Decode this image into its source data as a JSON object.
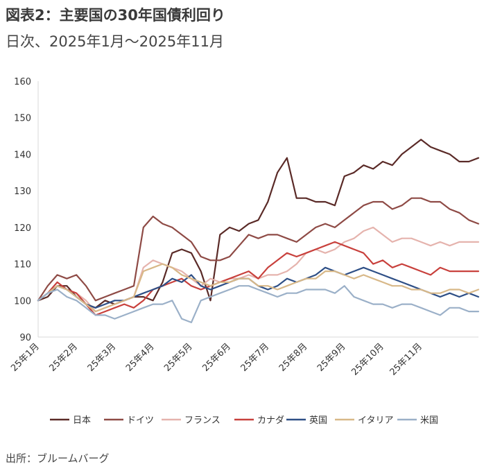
{
  "header": {
    "title": "図表2：主要国の30年国債利回り",
    "subtitle": "日次、2025年1月～2025年11月"
  },
  "footer": {
    "source": "出所：ブルームバーグ"
  },
  "colors": {
    "日本": "#5a2a27",
    "ドイツ": "#8e4a45",
    "フランス": "#e5b3ad",
    "カナダ": "#c8403c",
    "英国": "#2e4f86",
    "イタリア": "#d8b888",
    "米国": "#9bb0c8"
  },
  "chart_data": {
    "type": "line",
    "title": "主要国の30年国債利回り",
    "xlabel": "",
    "ylabel": "",
    "ylim": [
      90,
      160
    ],
    "yticks": [
      90,
      100,
      110,
      120,
      130,
      140,
      150,
      160
    ],
    "xlim": [
      0,
      46
    ],
    "x_tick_labels": [
      "25年1月",
      "25年2月",
      "25年3月",
      "25年4月",
      "25年5月",
      "25年6月",
      "25年7月",
      "25年8月",
      "25年9月",
      "25年10月",
      "25年11月"
    ],
    "x_tick_positions": [
      0,
      4,
      8,
      12,
      16,
      20,
      24,
      28,
      32,
      36,
      40
    ],
    "grid": false,
    "legend_position": "bottom",
    "series": [
      {
        "name": "日本",
        "values": [
          100,
          101,
          104,
          104,
          101,
          99,
          98,
          100,
          99,
          100,
          101,
          101,
          100,
          105,
          113,
          114,
          113,
          108,
          100,
          118,
          120,
          119,
          121,
          122,
          127,
          135,
          139,
          128,
          128,
          127,
          127,
          126,
          134,
          135,
          137,
          136,
          138,
          137,
          140,
          142,
          144,
          142,
          141,
          140,
          138,
          138,
          139
        ]
      },
      {
        "name": "ドイツ",
        "values": [
          100,
          104,
          107,
          106,
          107,
          104,
          100,
          101,
          102,
          103,
          104,
          120,
          123,
          121,
          120,
          118,
          116,
          112,
          111,
          111,
          112,
          115,
          118,
          117,
          118,
          118,
          117,
          116,
          118,
          120,
          121,
          120,
          122,
          124,
          126,
          127,
          127,
          125,
          126,
          128,
          128,
          127,
          127,
          125,
          124,
          122,
          121
        ]
      },
      {
        "name": "フランス",
        "values": [
          100,
          102,
          104,
          103,
          102,
          100,
          97,
          98,
          99,
          100,
          101,
          109,
          111,
          110,
          109,
          108,
          106,
          104,
          106,
          105,
          106,
          106,
          107,
          106,
          107,
          107,
          108,
          110,
          113,
          114,
          113,
          114,
          116,
          117,
          119,
          120,
          118,
          116,
          117,
          117,
          116,
          115,
          116,
          115,
          116,
          116,
          116
        ]
      },
      {
        "name": "カナダ",
        "values": [
          100,
          102,
          105,
          103,
          102,
          99,
          96,
          97,
          98,
          99,
          98,
          100,
          103,
          104,
          105,
          106,
          104,
          103,
          104,
          105,
          106,
          107,
          108,
          106,
          109,
          111,
          113,
          112,
          113,
          114,
          115,
          116,
          115,
          114,
          113,
          110,
          111,
          109,
          110,
          109,
          108,
          107,
          109,
          108,
          108,
          108,
          108
        ]
      },
      {
        "name": "英国",
        "values": [
          100,
          102,
          104,
          103,
          101,
          99,
          98,
          99,
          100,
          100,
          101,
          102,
          103,
          104,
          106,
          105,
          107,
          104,
          103,
          104,
          105,
          106,
          106,
          104,
          103,
          104,
          106,
          105,
          106,
          107,
          109,
          108,
          107,
          108,
          109,
          108,
          107,
          106,
          105,
          104,
          103,
          102,
          101,
          102,
          101,
          102,
          101
        ]
      },
      {
        "name": "イタリア",
        "values": [
          100,
          102,
          104,
          103,
          101,
          99,
          97,
          98,
          99,
          100,
          101,
          108,
          109,
          110,
          109,
          107,
          106,
          105,
          104,
          105,
          105,
          106,
          106,
          104,
          104,
          103,
          104,
          105,
          106,
          106,
          108,
          108,
          107,
          106,
          107,
          106,
          105,
          104,
          104,
          103,
          103,
          102,
          102,
          103,
          103,
          102,
          103
        ]
      },
      {
        "name": "米国",
        "values": [
          100,
          102,
          103,
          101,
          100,
          98,
          96,
          96,
          95,
          96,
          97,
          98,
          99,
          99,
          100,
          95,
          94,
          100,
          101,
          102,
          103,
          104,
          104,
          103,
          102,
          101,
          102,
          102,
          103,
          103,
          103,
          102,
          104,
          101,
          100,
          99,
          99,
          98,
          99,
          99,
          98,
          97,
          96,
          98,
          98,
          97,
          97
        ]
      }
    ]
  }
}
